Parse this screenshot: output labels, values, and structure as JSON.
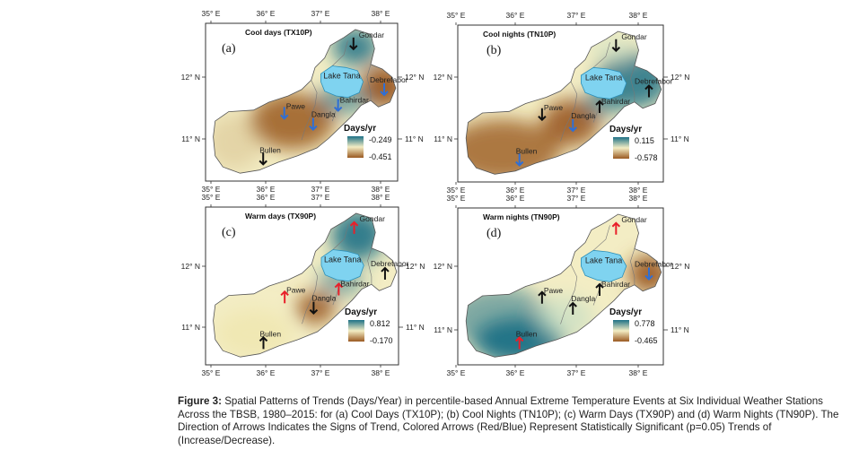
{
  "figure": {
    "caption_label": "Figure 3:",
    "caption_text": "Spatial Patterns of Trends (Days/Year) in percentile-based Annual Extreme Temperature Events at Six Individual Weather Stations Across the TBSB, 1980–2015: for (a) Cool Days (TX10P); (b) Cool Nights (TN10P); (c) Warm Days (TX90P) and (d) Warm Nights (TN90P). The Direction of Arrows Indicates the Signs of Trend, Colored Arrows (Red/Blue) Represent Statistically Significant (p=0.05) Trends of (Increase/Decrease)."
  },
  "axes": {
    "lon_labels": [
      "35° E",
      "36° E",
      "37° E",
      "38° E"
    ],
    "lat_labels": [
      "12° N",
      "11° N"
    ]
  },
  "colors": {
    "sig_increase": "#e8202a",
    "sig_decrease": "#2f6fd6",
    "not_significant": "#111111",
    "lake": "#7fd3f0",
    "brown": "#9a5a22",
    "teal": "#1e7186",
    "cream": "#f3edc4"
  },
  "panels": [
    {
      "id": "a",
      "letter": "(a)",
      "title": "Cool days (TX10P)",
      "legend_title": "Days/yr",
      "legend_max": "-0.249",
      "legend_min": "-0.451",
      "legend_top_color": "#1e7186",
      "legend_bottom_color": "#9a5a22",
      "lake_label": "Lake Tana",
      "stations": [
        {
          "name": "Gondar",
          "arrow": "down",
          "sig": "not_significant"
        },
        {
          "name": "Debrefabor",
          "arrow": "down",
          "sig": "decrease"
        },
        {
          "name": "Bahirdar",
          "arrow": "down",
          "sig": "decrease"
        },
        {
          "name": "Pawe",
          "arrow": "down",
          "sig": "decrease"
        },
        {
          "name": "Dangla",
          "arrow": "down",
          "sig": "decrease"
        },
        {
          "name": "Bullen",
          "arrow": "down",
          "sig": "not_significant"
        }
      ]
    },
    {
      "id": "b",
      "letter": "(b)",
      "title": "Cool nights (TN10P)",
      "legend_title": "Days/yr",
      "legend_max": "0.115",
      "legend_min": "-0.578",
      "legend_top_color": "#1e7186",
      "legend_bottom_color": "#9a5a22",
      "lake_label": "Lake Tana",
      "stations": [
        {
          "name": "Gondar",
          "arrow": "down",
          "sig": "not_significant"
        },
        {
          "name": "Debrefabor",
          "arrow": "up",
          "sig": "not_significant"
        },
        {
          "name": "Bahirdar",
          "arrow": "up",
          "sig": "not_significant"
        },
        {
          "name": "Pawe",
          "arrow": "down",
          "sig": "not_significant"
        },
        {
          "name": "Dangla",
          "arrow": "down",
          "sig": "decrease"
        },
        {
          "name": "Bullen",
          "arrow": "down",
          "sig": "decrease"
        }
      ]
    },
    {
      "id": "c",
      "letter": "(c)",
      "title": "Warm days (TX90P)",
      "legend_title": "Days/yr",
      "legend_max": "0.812",
      "legend_min": "-0.170",
      "legend_top_color": "#1e7186",
      "legend_bottom_color": "#9a5a22",
      "lake_label": "Lake Tana",
      "stations": [
        {
          "name": "Gondar",
          "arrow": "up",
          "sig": "increase"
        },
        {
          "name": "Debretabor",
          "arrow": "up",
          "sig": "not_significant"
        },
        {
          "name": "Bahirdar",
          "arrow": "up",
          "sig": "increase"
        },
        {
          "name": "Pawe",
          "arrow": "up",
          "sig": "increase"
        },
        {
          "name": "Dangla",
          "arrow": "down",
          "sig": "not_significant"
        },
        {
          "name": "Bullen",
          "arrow": "up",
          "sig": "not_significant"
        }
      ]
    },
    {
      "id": "d",
      "letter": "(d)",
      "title": "Warm nights (TN90P)",
      "legend_title": "Days/yr",
      "legend_max": "0.778",
      "legend_min": "-0.465",
      "legend_top_color": "#1e7186",
      "legend_bottom_color": "#9a5a22",
      "lake_label": "Lake Tana",
      "stations": [
        {
          "name": "Gondar",
          "arrow": "up",
          "sig": "increase"
        },
        {
          "name": "Debrefabor",
          "arrow": "down",
          "sig": "decrease"
        },
        {
          "name": "Bahirdar",
          "arrow": "up",
          "sig": "not_significant"
        },
        {
          "name": "Pawe",
          "arrow": "up",
          "sig": "not_significant"
        },
        {
          "name": "Dangla",
          "arrow": "up",
          "sig": "not_significant"
        },
        {
          "name": "Bullen",
          "arrow": "up",
          "sig": "increase"
        }
      ]
    }
  ]
}
